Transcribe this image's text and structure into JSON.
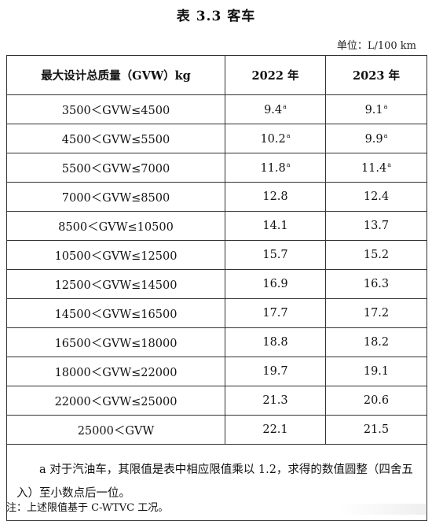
{
  "title": "表 3.3  客车",
  "unit_label": "单位：L/100 km",
  "table": {
    "headers": [
      "最大设计总质量（GVW）kg",
      "2022 年",
      "2023 年"
    ],
    "rows": [
      {
        "range": "3500＜GVW≤4500",
        "y2022": "9.4",
        "y2022_mark": "a",
        "y2023": "9.1",
        "y2023_mark": "a"
      },
      {
        "range": "4500＜GVW≤5500",
        "y2022": "10.2",
        "y2022_mark": "a",
        "y2023": "9.9",
        "y2023_mark": "a"
      },
      {
        "range": "5500＜GVW≤7000",
        "y2022": "11.8",
        "y2022_mark": "a",
        "y2023": "11.4",
        "y2023_mark": "a"
      },
      {
        "range": "7000＜GVW≤8500",
        "y2022": "12.8",
        "y2022_mark": "",
        "y2023": "12.4",
        "y2023_mark": ""
      },
      {
        "range": "8500＜GVW≤10500",
        "y2022": "14.1",
        "y2022_mark": "",
        "y2023": "13.7",
        "y2023_mark": ""
      },
      {
        "range": "10500＜GVW≤12500",
        "y2022": "15.7",
        "y2022_mark": "",
        "y2023": "15.2",
        "y2023_mark": ""
      },
      {
        "range": "12500＜GVW≤14500",
        "y2022": "16.9",
        "y2022_mark": "",
        "y2023": "16.3",
        "y2023_mark": ""
      },
      {
        "range": "14500＜GVW≤16500",
        "y2022": "17.7",
        "y2022_mark": "",
        "y2023": "17.2",
        "y2023_mark": ""
      },
      {
        "range": "16500＜GVW≤18000",
        "y2022": "18.8",
        "y2022_mark": "",
        "y2023": "18.2",
        "y2023_mark": ""
      },
      {
        "range": "18000＜GVW≤22000",
        "y2022": "19.7",
        "y2022_mark": "",
        "y2023": "19.1",
        "y2023_mark": ""
      },
      {
        "range": "22000＜GVW≤25000",
        "y2022": "21.3",
        "y2022_mark": "",
        "y2023": "20.6",
        "y2023_mark": ""
      },
      {
        "range": "25000＜GVW",
        "y2022": "22.1",
        "y2022_mark": "",
        "y2023": "21.5",
        "y2023_mark": ""
      }
    ],
    "footnote": "a 对于汽油车，其限值是表中相应限值乘以 1.2，求得的数值圆整（四舍五入）至小数点后一位。"
  },
  "note": "注：上述限值基于 C-WTVC 工况。"
}
